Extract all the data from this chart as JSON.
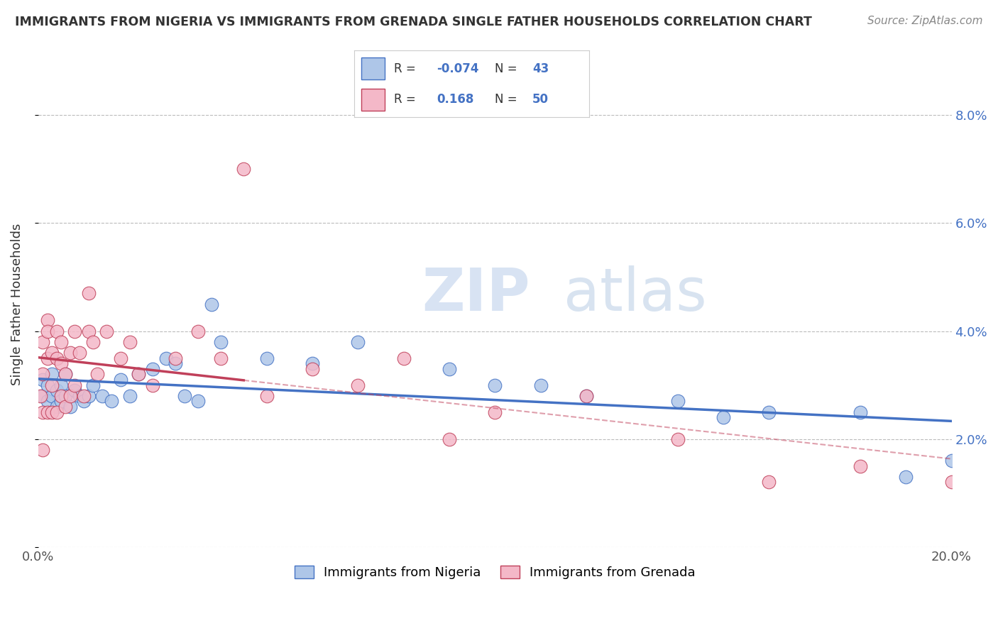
{
  "title": "IMMIGRANTS FROM NIGERIA VS IMMIGRANTS FROM GRENADA SINGLE FATHER HOUSEHOLDS CORRELATION CHART",
  "source": "Source: ZipAtlas.com",
  "ylabel": "Single Father Households",
  "xlim": [
    0.0,
    0.2
  ],
  "ylim": [
    0.0,
    0.09
  ],
  "yticks": [
    0.0,
    0.02,
    0.04,
    0.06,
    0.08
  ],
  "ytick_labels": [
    "",
    "2.0%",
    "4.0%",
    "6.0%",
    "8.0%"
  ],
  "xticks": [
    0.0,
    0.04,
    0.08,
    0.12,
    0.16,
    0.2
  ],
  "xtick_labels": [
    "0.0%",
    "",
    "",
    "",
    "",
    "20.0%"
  ],
  "legend_r_nigeria": "-0.074",
  "legend_n_nigeria": "43",
  "legend_r_grenada": "0.168",
  "legend_n_grenada": "50",
  "color_nigeria": "#aec6e8",
  "color_grenada": "#f4b8c8",
  "color_nigeria_line": "#4472c4",
  "color_grenada_line": "#c0405a",
  "nigeria_scatter_x": [
    0.001,
    0.001,
    0.002,
    0.002,
    0.003,
    0.003,
    0.004,
    0.004,
    0.005,
    0.005,
    0.006,
    0.006,
    0.007,
    0.008,
    0.009,
    0.01,
    0.011,
    0.012,
    0.014,
    0.016,
    0.018,
    0.02,
    0.022,
    0.025,
    0.028,
    0.03,
    0.032,
    0.035,
    0.038,
    0.04,
    0.05,
    0.06,
    0.07,
    0.09,
    0.1,
    0.11,
    0.12,
    0.14,
    0.15,
    0.16,
    0.18,
    0.19,
    0.2
  ],
  "nigeria_scatter_y": [
    0.028,
    0.031,
    0.027,
    0.03,
    0.028,
    0.032,
    0.026,
    0.029,
    0.027,
    0.03,
    0.028,
    0.032,
    0.026,
    0.029,
    0.028,
    0.027,
    0.028,
    0.03,
    0.028,
    0.027,
    0.031,
    0.028,
    0.032,
    0.033,
    0.035,
    0.034,
    0.028,
    0.027,
    0.045,
    0.038,
    0.035,
    0.034,
    0.038,
    0.033,
    0.03,
    0.03,
    0.028,
    0.027,
    0.024,
    0.025,
    0.025,
    0.013,
    0.016
  ],
  "grenada_scatter_x": [
    0.0005,
    0.001,
    0.001,
    0.001,
    0.001,
    0.002,
    0.002,
    0.002,
    0.002,
    0.003,
    0.003,
    0.003,
    0.004,
    0.004,
    0.004,
    0.005,
    0.005,
    0.005,
    0.006,
    0.006,
    0.007,
    0.007,
    0.008,
    0.008,
    0.009,
    0.01,
    0.011,
    0.012,
    0.013,
    0.015,
    0.018,
    0.02,
    0.025,
    0.03,
    0.035,
    0.04,
    0.045,
    0.05,
    0.06,
    0.07,
    0.08,
    0.09,
    0.1,
    0.12,
    0.14,
    0.16,
    0.18,
    0.2,
    0.022,
    0.011
  ],
  "grenada_scatter_y": [
    0.028,
    0.038,
    0.032,
    0.025,
    0.018,
    0.042,
    0.04,
    0.035,
    0.025,
    0.036,
    0.03,
    0.025,
    0.04,
    0.035,
    0.025,
    0.038,
    0.034,
    0.028,
    0.032,
    0.026,
    0.036,
    0.028,
    0.04,
    0.03,
    0.036,
    0.028,
    0.04,
    0.038,
    0.032,
    0.04,
    0.035,
    0.038,
    0.03,
    0.035,
    0.04,
    0.035,
    0.07,
    0.028,
    0.033,
    0.03,
    0.035,
    0.02,
    0.025,
    0.028,
    0.02,
    0.012,
    0.015,
    0.012,
    0.032,
    0.047
  ]
}
